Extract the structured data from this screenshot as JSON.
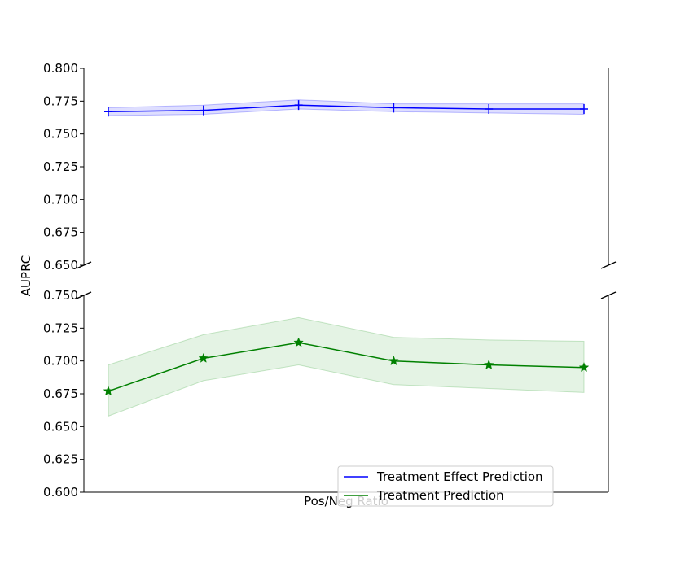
{
  "chart_data": {
    "type": "line",
    "xlabel": "Pos/Neg Ratio",
    "ylabel": "AUPRC",
    "x": [
      1,
      2,
      3,
      4,
      5,
      6
    ],
    "x_tick_labels": [],
    "panels": [
      {
        "name": "top",
        "ylim": [
          0.65,
          0.8
        ],
        "yticks": [
          "0.650",
          "0.675",
          "0.700",
          "0.725",
          "0.750",
          "0.775",
          "0.800"
        ],
        "series": [
          {
            "name": "Treatment Effect Prediction",
            "color": "#0000ff",
            "band_color": "#0000ff",
            "marker": "plus",
            "values": [
              0.767,
              0.768,
              0.772,
              0.77,
              0.769,
              0.769
            ],
            "lower": [
              0.764,
              0.765,
              0.769,
              0.767,
              0.766,
              0.765
            ],
            "upper": [
              0.77,
              0.772,
              0.776,
              0.773,
              0.773,
              0.773
            ]
          }
        ]
      },
      {
        "name": "bottom",
        "ylim": [
          0.6,
          0.75
        ],
        "yticks": [
          "0.600",
          "0.625",
          "0.650",
          "0.675",
          "0.700",
          "0.725",
          "0.750"
        ],
        "series": [
          {
            "name": "Treatment Prediction",
            "color": "#008000",
            "band_color": "#2ca02c",
            "marker": "star",
            "values": [
              0.677,
              0.702,
              0.714,
              0.7,
              0.697,
              0.695
            ],
            "lower": [
              0.658,
              0.685,
              0.697,
              0.682,
              0.679,
              0.676
            ],
            "upper": [
              0.697,
              0.72,
              0.733,
              0.718,
              0.716,
              0.715
            ]
          }
        ]
      }
    ],
    "legend": {
      "placement": "lower-right",
      "entries": [
        "Treatment Effect Prediction",
        "Treatment Prediction"
      ]
    }
  }
}
